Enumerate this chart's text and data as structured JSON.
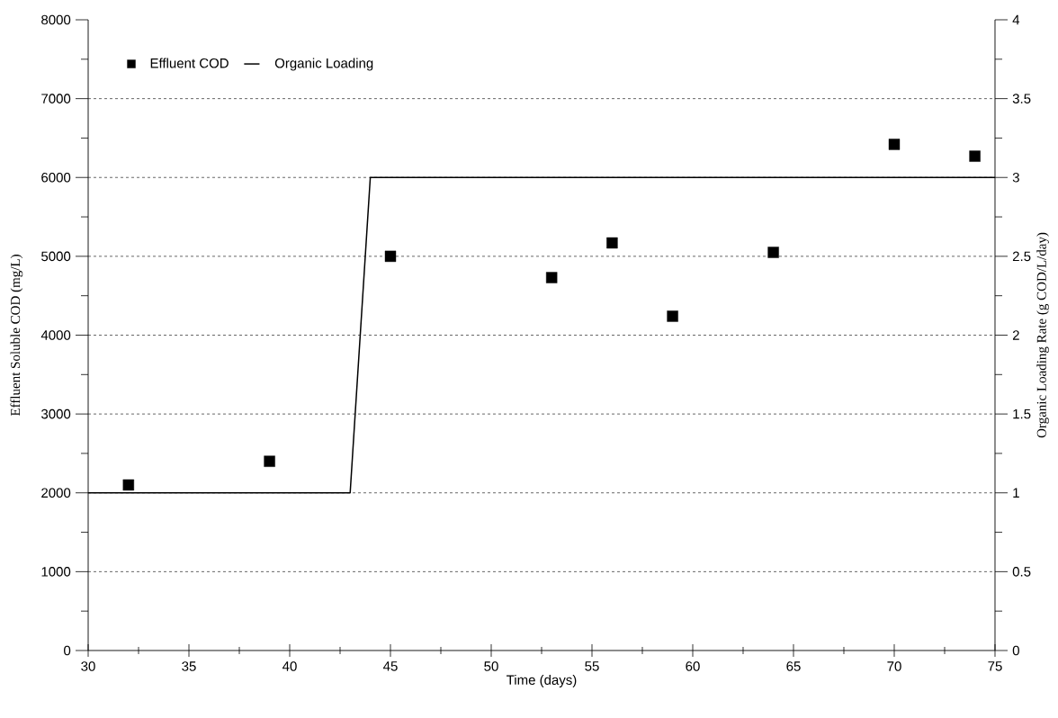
{
  "chart_data": {
    "type": "scatter",
    "xlabel": "Time  (days)",
    "ylabel": "Effluent Soluble COD  (mg/L)",
    "y2label": "Organic Loading Rate  (g COD/L/day)",
    "xlim": [
      30,
      75
    ],
    "xticks": [
      30,
      35,
      40,
      45,
      50,
      55,
      60,
      65,
      70,
      75
    ],
    "ylim": [
      0,
      8000
    ],
    "yticks": [
      0,
      1000,
      2000,
      3000,
      4000,
      5000,
      6000,
      7000,
      8000
    ],
    "y2lim": [
      0,
      4
    ],
    "y2ticks": [
      0,
      0.5,
      1,
      1.5,
      2,
      2.5,
      3,
      3.5,
      4
    ],
    "grid": "y",
    "legend": "top left",
    "series": [
      {
        "name": "Effluent COD",
        "marker": "square",
        "color": "#000000",
        "x": [
          32,
          39,
          45,
          53,
          56,
          59,
          64,
          70,
          74
        ],
        "values": [
          2100,
          2400,
          5000,
          4730,
          5170,
          4240,
          5050,
          6420,
          6270
        ]
      },
      {
        "name": "Organic Loading",
        "type": "line",
        "axis": "y2",
        "line_style": "solid",
        "color": "#000000",
        "x": [
          30,
          43,
          44,
          75
        ],
        "values": [
          1,
          1,
          3,
          3
        ]
      }
    ]
  }
}
